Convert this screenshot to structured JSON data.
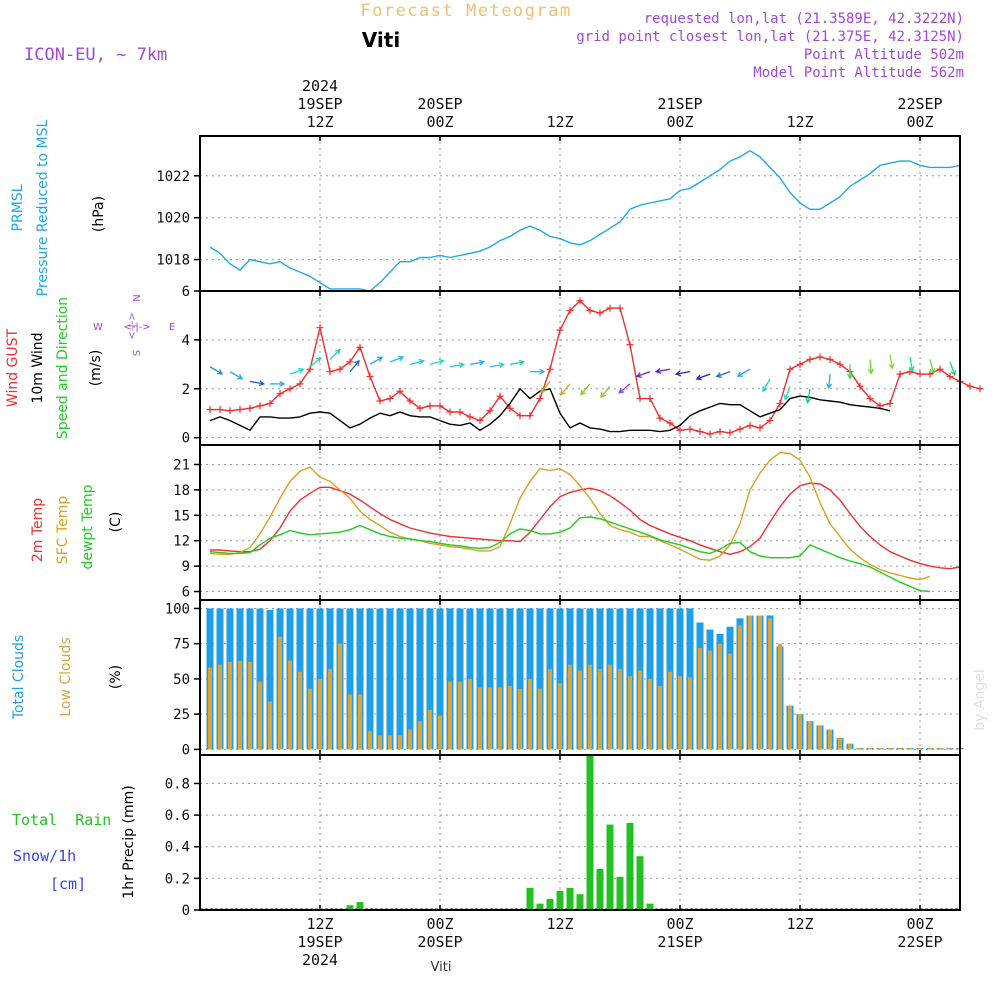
{
  "header": {
    "title": "Forecast Meteogram",
    "model": "ICON-EU, ~ 7km",
    "location": "Viti",
    "requested": "requested lon,lat (21.3589E, 42.3222N)",
    "gridpoint": "grid point closest lon,lat (21.375E, 42.3125N)",
    "point_alt": "Point Altitude 502m",
    "model_alt": "Model Point Altitude 562m",
    "watermark": "by Angel",
    "footer": "Viti"
  },
  "time_axis": {
    "top": [
      {
        "lines": [
          "2024",
          "19SEP",
          "12Z"
        ],
        "hour": 12
      },
      {
        "lines": [
          "20SEP",
          "00Z"
        ],
        "hour": 24
      },
      {
        "lines": [
          "12Z"
        ],
        "hour": 36
      },
      {
        "lines": [
          "21SEP",
          "00Z"
        ],
        "hour": 48
      },
      {
        "lines": [
          "12Z"
        ],
        "hour": 60
      },
      {
        "lines": [
          "22SEP",
          "00Z"
        ],
        "hour": 72
      }
    ],
    "bottom": [
      {
        "lines": [
          "12Z",
          "19SEP",
          "2024"
        ],
        "hour": 12
      },
      {
        "lines": [
          "00Z",
          "20SEP"
        ],
        "hour": 24
      },
      {
        "lines": [
          "12Z"
        ],
        "hour": 36
      },
      {
        "lines": [
          "00Z",
          "21SEP"
        ],
        "hour": 48
      },
      {
        "lines": [
          "12Z"
        ],
        "hour": 60
      },
      {
        "lines": [
          "00Z",
          "22SEP"
        ],
        "hour": 72
      }
    ]
  },
  "panel_labels": {
    "pressure": [
      "PRMSL",
      "Pressure Reduced to MSL"
    ],
    "pressure_unit": "(hPa)",
    "wind": [
      "Wind GUST",
      "10m Wind",
      "Speed and Direction"
    ],
    "wind_unit": "(m/s)",
    "compass": {
      "n": "N",
      "s": "S",
      "w": "W",
      "e": "E",
      "ew": "<-|->",
      "ns": "<-|->"
    },
    "temp": [
      "2m Temp",
      "SFC Temp",
      "dewpt Temp"
    ],
    "temp_unit": "(C)",
    "clouds": [
      "Total Clouds",
      "Low Clouds"
    ],
    "clouds_unit": "(%)",
    "rain_left": [
      "Total  Rain",
      "Snow/1h",
      "[cm]"
    ],
    "rain_axis": "1hr Precip (mm)"
  },
  "colors": {
    "pressure": "#1fa9e6",
    "gust": "#ee3030",
    "wind": "#000000",
    "t2m": "#ee3030",
    "tsfc": "#dda020",
    "dewpt": "#22cc22",
    "total_clouds": "#1e9fe8",
    "low_clouds": "#d7a53b",
    "rain": "#22c022",
    "snow": "#3344ee",
    "title": "#f0c070",
    "info": "#a048d8"
  },
  "chart_data": [
    {
      "type": "line",
      "name": "PRMSL",
      "x_start_hour": 1,
      "x_step_hours": 1,
      "ylim": [
        1016.5,
        1023.9
      ],
      "yticks": [
        1018,
        1020,
        1022
      ],
      "series": [
        {
          "name": "PRMSL",
          "values": [
            1018.6,
            1018.3,
            1017.8,
            1017.5,
            1018.0,
            1017.9,
            1017.8,
            1017.9,
            1017.6,
            1017.4,
            1017.2,
            1016.9,
            1016.6,
            1016.6,
            1016.6,
            1016.6,
            1016.5,
            1016.9,
            1017.4,
            1017.9,
            1017.9,
            1018.1,
            1018.1,
            1018.2,
            1018.1,
            1018.2,
            1018.3,
            1018.4,
            1018.6,
            1018.9,
            1019.1,
            1019.4,
            1019.6,
            1019.4,
            1019.1,
            1019.0,
            1018.8,
            1018.7,
            1018.9,
            1019.2,
            1019.5,
            1019.8,
            1020.4,
            1020.6,
            1020.7,
            1020.8,
            1020.9,
            1021.3,
            1021.4,
            1021.7,
            1022.0,
            1022.3,
            1022.7,
            1022.9,
            1023.2,
            1022.9,
            1022.4,
            1021.9,
            1021.2,
            1020.7,
            1020.4,
            1020.4,
            1020.7,
            1021.0,
            1021.5,
            1021.8,
            1022.1,
            1022.5,
            1022.6,
            1022.7,
            1022.7,
            1022.5,
            1022.4,
            1022.4,
            1022.4,
            1022.5
          ]
        }
      ]
    },
    {
      "type": "line",
      "name": "Wind",
      "x_start_hour": 1,
      "x_step_hours": 1,
      "ylim": [
        -0.3,
        6
      ],
      "yticks": [
        0,
        2,
        4,
        6
      ],
      "series": [
        {
          "name": "Wind GUST",
          "values": [
            1.15,
            1.15,
            1.1,
            1.15,
            1.2,
            1.3,
            1.4,
            1.8,
            2.0,
            2.2,
            2.8,
            4.5,
            2.7,
            2.8,
            3.1,
            3.7,
            2.5,
            1.5,
            1.6,
            1.9,
            1.5,
            1.2,
            1.3,
            1.3,
            1.05,
            1.05,
            0.85,
            0.7,
            1.1,
            1.7,
            1.2,
            0.9,
            0.9,
            1.6,
            2.8,
            4.4,
            5.2,
            5.6,
            5.2,
            5.1,
            5.3,
            5.3,
            3.8,
            1.6,
            1.6,
            0.8,
            0.6,
            0.3,
            0.35,
            0.25,
            0.15,
            0.25,
            0.2,
            0.35,
            0.5,
            0.4,
            0.7,
            1.4,
            2.8,
            3.0,
            3.2,
            3.3,
            3.2,
            3.0,
            2.7,
            2.1,
            1.6,
            1.3,
            1.4,
            2.6,
            2.7,
            2.6,
            2.6,
            2.8,
            2.5,
            2.3,
            2.1,
            2.0
          ]
        },
        {
          "name": "10m Wind",
          "values": [
            0.7,
            0.85,
            0.7,
            0.5,
            0.3,
            0.85,
            0.85,
            0.8,
            0.8,
            0.85,
            1.0,
            1.05,
            1.0,
            0.7,
            0.4,
            0.55,
            0.8,
            1.0,
            0.9,
            1.05,
            0.9,
            0.85,
            0.85,
            0.7,
            0.55,
            0.5,
            0.6,
            0.3,
            0.55,
            0.9,
            1.4,
            2.0,
            1.6,
            1.9,
            2.0,
            1.0,
            0.4,
            0.6,
            0.4,
            0.35,
            0.25,
            0.25,
            0.3,
            0.3,
            0.3,
            0.25,
            0.3,
            0.5,
            0.9,
            1.1,
            1.25,
            1.4,
            1.35,
            1.35,
            1.1,
            0.85,
            1.0,
            1.15,
            1.6,
            1.7,
            1.65,
            1.55,
            1.5,
            1.45,
            1.35,
            1.3,
            1.25,
            1.2,
            1.1
          ]
        }
      ]
    },
    {
      "type": "line",
      "name": "Temperature",
      "x_start_hour": 1,
      "x_step_hours": 1,
      "ylim": [
        5,
        23.3
      ],
      "yticks": [
        6,
        9,
        12,
        15,
        18,
        21
      ],
      "series": [
        {
          "name": "2m Temp",
          "values": [
            10.9,
            10.9,
            10.8,
            10.7,
            10.7,
            11.0,
            12.0,
            13.5,
            15.5,
            16.8,
            17.6,
            18.3,
            18.3,
            17.9,
            17.5,
            16.8,
            16.0,
            15.2,
            14.5,
            14.0,
            13.5,
            13.2,
            12.9,
            12.7,
            12.5,
            12.4,
            12.3,
            12.2,
            12.1,
            12.0,
            12.0,
            11.9,
            13.0,
            14.5,
            16.0,
            17.2,
            17.7,
            18.0,
            18.2,
            17.9,
            17.3,
            16.5,
            15.6,
            14.5,
            13.8,
            13.3,
            12.8,
            12.4,
            12.0,
            11.5,
            11.1,
            10.7,
            10.4,
            10.7,
            11.3,
            12.3,
            14.2,
            16.0,
            17.5,
            18.5,
            18.8,
            18.7,
            18.0,
            16.8,
            15.2,
            13.7,
            12.5,
            11.5,
            10.7,
            10.2,
            9.7,
            9.3,
            9.0,
            8.8,
            8.7,
            8.9
          ]
        },
        {
          "name": "SFC Temp",
          "values": [
            10.5,
            10.4,
            10.4,
            10.6,
            11.2,
            12.8,
            14.8,
            17.0,
            19.0,
            20.2,
            20.7,
            19.5,
            19.0,
            18.0,
            17.0,
            15.5,
            14.5,
            13.8,
            13.0,
            12.5,
            12.2,
            12.0,
            11.7,
            11.5,
            11.3,
            11.2,
            11.0,
            10.8,
            10.8,
            11.3,
            14.0,
            17.0,
            19.0,
            20.5,
            20.3,
            20.5,
            19.8,
            18.5,
            17.0,
            15.2,
            13.8,
            13.3,
            13.0,
            12.5,
            12.5,
            12.0,
            11.5,
            11.0,
            10.4,
            9.8,
            9.7,
            10.2,
            11.5,
            14.0,
            18.0,
            20.0,
            21.5,
            22.4,
            22.3,
            21.5,
            19.5,
            16.5,
            14.0,
            12.5,
            11.0,
            10.0,
            9.2,
            8.6,
            8.2,
            7.9,
            7.6,
            7.4,
            7.8
          ]
        },
        {
          "name": "dewpt Temp",
          "values": [
            10.7,
            10.6,
            10.5,
            10.5,
            10.6,
            11.5,
            12.3,
            12.7,
            13.2,
            12.9,
            12.7,
            12.8,
            12.9,
            13.0,
            13.3,
            13.8,
            13.3,
            12.8,
            12.5,
            12.3,
            12.2,
            12.0,
            11.9,
            11.7,
            11.5,
            11.4,
            11.2,
            11.1,
            11.2,
            11.8,
            12.8,
            13.4,
            13.2,
            12.8,
            12.8,
            13.0,
            13.5,
            14.7,
            14.8,
            14.6,
            14.2,
            13.8,
            13.4,
            13.0,
            12.6,
            12.1,
            11.8,
            11.5,
            11.1,
            10.7,
            10.5,
            11.0,
            11.7,
            11.8,
            10.7,
            10.2,
            10.0,
            10.0,
            10.0,
            10.2,
            11.5,
            11.0,
            10.5,
            10.0,
            9.6,
            9.3,
            8.9,
            8.3,
            7.7,
            7.1,
            6.6,
            6.1,
            6.0
          ]
        }
      ]
    },
    {
      "type": "bar",
      "name": "Clouds",
      "x_start_hour": 1,
      "x_step_hours": 1,
      "ylim": [
        -4,
        106
      ],
      "yticks": [
        0,
        25,
        50,
        75,
        100
      ],
      "series": [
        {
          "name": "Total Clouds",
          "values": [
            100,
            100,
            100,
            100,
            100,
            100,
            99,
            100,
            100,
            100,
            100,
            100,
            100,
            100,
            100,
            100,
            100,
            100,
            100,
            100,
            100,
            100,
            100,
            100,
            100,
            100,
            100,
            100,
            100,
            100,
            100,
            100,
            100,
            100,
            100,
            100,
            100,
            100,
            100,
            100,
            100,
            100,
            100,
            100,
            100,
            100,
            100,
            100,
            100,
            90,
            85,
            82,
            87,
            93,
            95,
            95,
            95,
            73,
            31,
            25,
            20,
            17,
            14,
            8,
            4,
            1,
            1,
            1,
            1,
            1,
            1,
            1,
            1,
            1,
            1,
            1
          ]
        },
        {
          "name": "Low Clouds",
          "values": [
            58,
            60,
            62,
            63,
            62,
            48,
            34,
            80,
            63,
            55,
            43,
            50,
            57,
            75,
            39,
            39,
            13,
            10,
            10,
            10,
            14,
            20,
            28,
            24,
            48,
            48,
            50,
            44,
            44,
            44,
            45,
            43,
            50,
            43,
            57,
            47,
            60,
            56,
            60,
            57,
            60,
            57,
            52,
            56,
            50,
            45,
            55,
            52,
            51,
            72,
            70,
            75,
            68,
            88,
            95,
            95,
            93,
            75,
            31,
            25,
            20,
            17,
            14,
            8,
            4,
            1,
            1,
            1,
            1,
            1,
            1,
            1,
            1,
            1,
            1,
            1
          ]
        }
      ]
    },
    {
      "type": "bar",
      "name": "Precipitation",
      "x_start_hour": 1,
      "x_step_hours": 1,
      "ylim": [
        0,
        0.98
      ],
      "yticks": [
        0,
        0.2,
        0.4,
        0.6,
        0.8
      ],
      "series": [
        {
          "name": "Total Rain",
          "values": [
            0,
            0,
            0,
            0,
            0,
            0,
            0,
            0,
            0,
            0,
            0,
            0.01,
            0,
            0,
            0.03,
            0.05,
            0,
            0,
            0,
            0,
            0,
            0,
            0,
            0,
            0,
            0,
            0,
            0,
            0,
            0,
            0,
            0,
            0.14,
            0.04,
            0.07,
            0.12,
            0.14,
            0.1,
            0.98,
            0.26,
            0.54,
            0.21,
            0.55,
            0.34,
            0.04,
            0,
            0,
            0,
            0,
            0,
            0,
            0,
            0,
            0,
            0,
            0,
            0,
            0,
            0,
            0,
            0,
            0,
            0,
            0,
            0,
            0,
            0,
            0,
            0,
            0,
            0,
            0,
            0,
            0,
            0,
            0
          ]
        },
        {
          "name": "Snow/1h",
          "values": []
        }
      ]
    }
  ],
  "wind_arrows": {
    "positions_hours": [
      1,
      3,
      5,
      7,
      9,
      11,
      13,
      15,
      17,
      19,
      21,
      23,
      25,
      27,
      29,
      31,
      33,
      35,
      37,
      39,
      41,
      43,
      45,
      47,
      49,
      51,
      53,
      55,
      57,
      59,
      61,
      63,
      65,
      67,
      69,
      71,
      73,
      75
    ],
    "direction_deg": [
      120,
      120,
      100,
      90,
      70,
      50,
      45,
      40,
      60,
      70,
      75,
      75,
      80,
      80,
      80,
      80,
      90,
      220,
      220,
      220,
      220,
      230,
      250,
      260,
      260,
      250,
      250,
      240,
      210,
      200,
      190,
      185,
      180,
      175,
      170,
      170,
      165,
      160
    ],
    "speed": [
      2.9,
      2.7,
      2.3,
      2.2,
      2.6,
      2.9,
      3.2,
      2.7,
      3.0,
      3.1,
      3.0,
      3.0,
      2.9,
      3.0,
      2.9,
      3.0,
      2.7,
      2.3,
      2.2,
      2.2,
      2.1,
      2.2,
      2.7,
      2.8,
      2.7,
      2.6,
      2.7,
      2.8,
      2.4,
      2.1,
      2.0,
      2.6,
      3.0,
      3.2,
      3.4,
      3.3,
      3.2,
      3.1
    ],
    "colors": [
      "#2288ee",
      "#22aaee",
      "#2255dd",
      "#22aaee",
      "#22ccdd",
      "#22ddaa",
      "#22ccbb",
      "#2266dd",
      "#22aaee",
      "#22bbee",
      "#22ccdd",
      "#22ddcc",
      "#22ccdd",
      "#22aaee",
      "#22ccdd",
      "#22ccaa",
      "#22bbdd",
      "#aabb22",
      "#ccaa22",
      "#88cc22",
      "#88cc22",
      "#8844ee",
      "#7722cc",
      "#5522cc",
      "#3322bb",
      "#2222bb",
      "#2266dd",
      "#22aaee",
      "#22cccc",
      "#22ddaa",
      "#22cc88",
      "#22aaee",
      "#33dd55",
      "#66dd22",
      "#88dd22",
      "#22dd88",
      "#66dd44",
      "#22cc88"
    ]
  }
}
